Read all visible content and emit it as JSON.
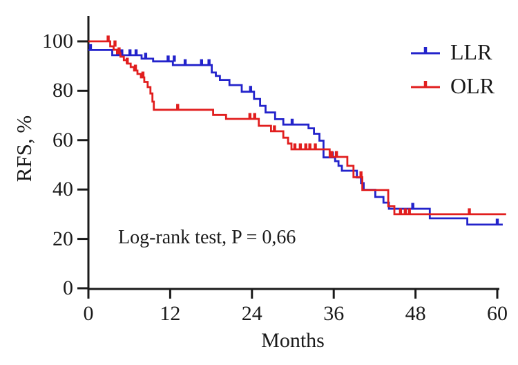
{
  "chart_data": {
    "type": "line",
    "subtype": "kaplan-meier-step",
    "title": "",
    "xlabel": "Months",
    "ylabel": "RFS, %",
    "annotation": "Log-rank test, P = 0,66",
    "xlim": [
      0,
      60
    ],
    "ylim": [
      0,
      100
    ],
    "x_ticks": [
      0,
      12,
      24,
      36,
      48,
      60
    ],
    "y_ticks": [
      0,
      20,
      40,
      60,
      80,
      100
    ],
    "grid": false,
    "legend_position": "top-right",
    "axis_color": "#1a1a1a",
    "series": [
      {
        "name": "LLR",
        "color": "#2323cb",
        "end_month": 60.8,
        "steps": [
          [
            0,
            96.5
          ],
          [
            3.5,
            94.4
          ],
          [
            7.8,
            93
          ],
          [
            9.5,
            91.9
          ],
          [
            12.4,
            90.4
          ],
          [
            18.1,
            87.4
          ],
          [
            18.7,
            86
          ],
          [
            19.3,
            84.4
          ],
          [
            20.7,
            82.3
          ],
          [
            22.5,
            79.6
          ],
          [
            24.3,
            76.7
          ],
          [
            25.2,
            73.9
          ],
          [
            26,
            71.2
          ],
          [
            27.4,
            68.5
          ],
          [
            28.6,
            66.3
          ],
          [
            32.3,
            64.8
          ],
          [
            33.1,
            62.6
          ],
          [
            33.9,
            59.8
          ],
          [
            34.5,
            53
          ],
          [
            36.2,
            51.5
          ],
          [
            36.7,
            49.6
          ],
          [
            37.2,
            47.6
          ],
          [
            39.4,
            44.9
          ],
          [
            40,
            42.6
          ],
          [
            40.4,
            39.9
          ],
          [
            42.1,
            37
          ],
          [
            43.3,
            34.7
          ],
          [
            44.1,
            32.2
          ],
          [
            50.1,
            28.3
          ],
          [
            55.6,
            25.8
          ]
        ],
        "censors": [
          [
            0.3,
            96.5
          ],
          [
            4.3,
            94.4
          ],
          [
            4.9,
            94.4
          ],
          [
            6.1,
            94.4
          ],
          [
            7,
            94.4
          ],
          [
            8.4,
            93
          ],
          [
            11.7,
            91.9
          ],
          [
            12.6,
            91.9
          ],
          [
            14.2,
            90.4
          ],
          [
            16.6,
            90.4
          ],
          [
            17.7,
            90.4
          ],
          [
            23.8,
            79.6
          ],
          [
            29.9,
            66.3
          ],
          [
            35.8,
            53
          ],
          [
            47.6,
            32.2
          ],
          [
            60,
            25.8
          ]
        ]
      },
      {
        "name": "OLR",
        "color": "#e11e1e",
        "end_month": 61.3,
        "steps": [
          [
            0,
            100
          ],
          [
            3.2,
            98
          ],
          [
            3.7,
            96.6
          ],
          [
            4.2,
            95.2
          ],
          [
            4.7,
            93.8
          ],
          [
            5.2,
            92.4
          ],
          [
            5.7,
            91
          ],
          [
            6.2,
            89.6
          ],
          [
            6.7,
            88.2
          ],
          [
            7.2,
            86.8
          ],
          [
            7.7,
            85.4
          ],
          [
            8.2,
            83.6
          ],
          [
            8.7,
            81.5
          ],
          [
            9.1,
            78.9
          ],
          [
            9.4,
            75.6
          ],
          [
            9.6,
            72.3
          ],
          [
            18.3,
            70.2
          ],
          [
            20.2,
            68.6
          ],
          [
            25,
            65.8
          ],
          [
            26.8,
            63.6
          ],
          [
            28.6,
            61
          ],
          [
            29.3,
            58.6
          ],
          [
            29.8,
            56.3
          ],
          [
            35.4,
            53.2
          ],
          [
            38,
            49.6
          ],
          [
            38.9,
            45
          ],
          [
            40.2,
            39.8
          ],
          [
            44,
            33.2
          ],
          [
            44.9,
            30
          ]
        ],
        "censors": [
          [
            2.9,
            100
          ],
          [
            3.9,
            98
          ],
          [
            4.5,
            95.2
          ],
          [
            5.7,
            91
          ],
          [
            6.9,
            88.2
          ],
          [
            8,
            85.4
          ],
          [
            13.1,
            72.3
          ],
          [
            23.7,
            68.6
          ],
          [
            24.4,
            68.6
          ],
          [
            27.3,
            63.6
          ],
          [
            30.3,
            56.3
          ],
          [
            31.1,
            56.3
          ],
          [
            31.9,
            56.3
          ],
          [
            32.5,
            56.3
          ],
          [
            33.3,
            56.3
          ],
          [
            35.7,
            53.2
          ],
          [
            36.4,
            53.2
          ],
          [
            40,
            45
          ],
          [
            45.8,
            30
          ],
          [
            46.5,
            30
          ],
          [
            47.1,
            30
          ],
          [
            55.9,
            30
          ]
        ]
      }
    ]
  }
}
